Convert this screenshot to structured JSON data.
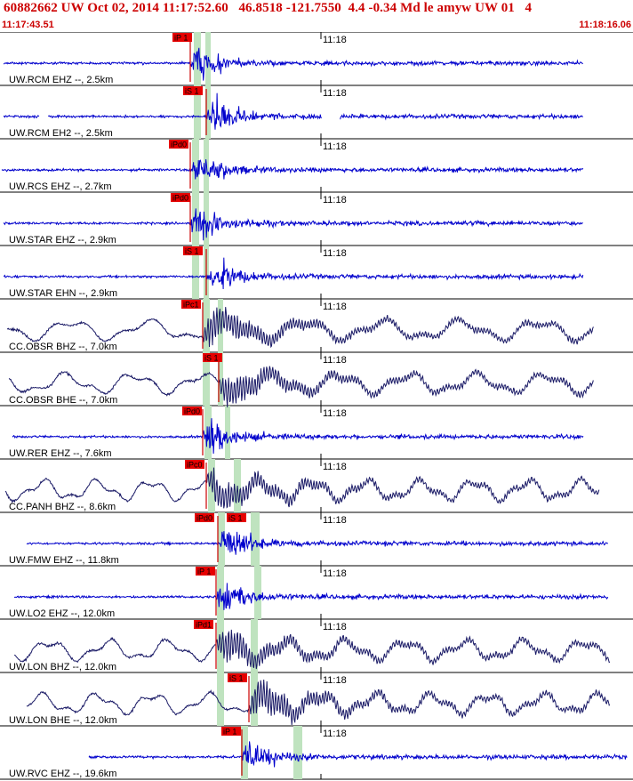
{
  "header": {
    "title": "60882662 UW Oct 02, 2014 11:17:52.60   46.8518 -121.7550  4.4 -0.34 Md le amyw UW 01   4",
    "time_start": "11:17:43.51",
    "time_end": "11:18:16.06",
    "tick_label": "11:18",
    "color": "#cc0000"
  },
  "chart_data": {
    "type": "line",
    "title": "60882662 UW Oct 02, 2014 11:17:52.60   46.8518 -121.7550  4.4 -0.34 Md le amyw UW 01   4",
    "x_range": [
      "11:17:43.51",
      "11:18:16.06"
    ],
    "xtick": "11:18",
    "grid": false,
    "traces": [
      {
        "label": "UW.RCM EHZ --, 2.5km",
        "color": "#0000cc",
        "style": "hf",
        "phases": [
          "iP 1"
        ]
      },
      {
        "label": "UW.RCM EH2 --, 2.5km",
        "color": "#0000cc",
        "style": "hf",
        "phases": [
          "iS 1"
        ]
      },
      {
        "label": "UW.RCS EHZ --, 2.7km",
        "color": "#0000cc",
        "style": "hf",
        "phases": [
          "iPd0"
        ]
      },
      {
        "label": "UW.STAR EHZ --, 2.9km",
        "color": "#0000cc",
        "style": "hf",
        "phases": [
          "iPd0"
        ]
      },
      {
        "label": "UW.STAR EHN --, 2.9km",
        "color": "#0000cc",
        "style": "hf",
        "phases": [
          "iS 1"
        ]
      },
      {
        "label": "CC.OBSR BHZ --, 7.0km",
        "color": "#1a1a66",
        "style": "lf",
        "phases": [
          "iPc1"
        ]
      },
      {
        "label": "CC.OBSR BHE --, 7.0km",
        "color": "#1a1a66",
        "style": "lf",
        "phases": [
          "iS 1"
        ]
      },
      {
        "label": "UW.RER EHZ --, 7.6km",
        "color": "#0000cc",
        "style": "hf",
        "phases": [
          "iPd0"
        ]
      },
      {
        "label": "CC.PANH BHZ --, 8.6km",
        "color": "#1a1a66",
        "style": "lf",
        "phases": [
          "iPc0"
        ]
      },
      {
        "label": "UW.FMW EHZ --, 11.8km",
        "color": "#0000cc",
        "style": "hf",
        "phases": [
          "iPd0",
          "iS 1"
        ]
      },
      {
        "label": "UW.LO2 EHZ --, 12.0km",
        "color": "#0000cc",
        "style": "hf",
        "phases": [
          "iP 1"
        ]
      },
      {
        "label": "UW.LON BHZ --, 12.0km",
        "color": "#1a1a66",
        "style": "lf",
        "phases": [
          "iPd1"
        ]
      },
      {
        "label": "UW.LON BHE --, 12.0km",
        "color": "#1a1a66",
        "style": "lf",
        "phases": [
          "iS 1"
        ]
      },
      {
        "label": "UW.RVC EHZ --, 19.6km",
        "color": "#0000cc",
        "style": "hf",
        "phases": [
          "iP 1"
        ]
      }
    ]
  }
}
